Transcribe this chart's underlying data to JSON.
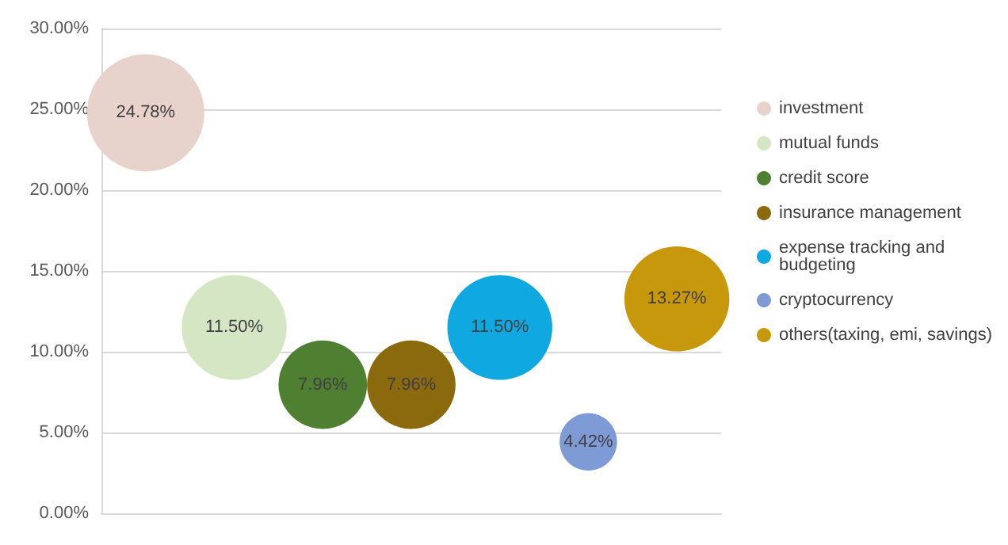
{
  "chart_data": {
    "type": "bubble",
    "categories": [
      null,
      null,
      null,
      null,
      null,
      null,
      null
    ],
    "relative": false,
    "series": [
      {
        "name": "investment",
        "color": "#e8d3cc",
        "values": [
          24.78,
          null,
          null,
          null,
          null,
          null,
          null
        ],
        "sizes": [
          1,
          null,
          null,
          null,
          null,
          null,
          null
        ],
        "value_labels": [
          "24.78%",
          null,
          null,
          null,
          null,
          null,
          null
        ]
      },
      {
        "name": "mutual funds",
        "color": "#d5e6c4",
        "values": [
          null,
          11.5,
          null,
          null,
          null,
          null,
          null
        ],
        "sizes": [
          null,
          0.8,
          null,
          null,
          null,
          null,
          null
        ],
        "value_labels": [
          null,
          "11.50%",
          null,
          null,
          null,
          null,
          null
        ]
      },
      {
        "name": "credit score",
        "color": "#4f7f30",
        "values": [
          null,
          null,
          7.96,
          null,
          null,
          null,
          null
        ],
        "sizes": [
          null,
          null,
          0.57,
          null,
          null,
          null,
          null
        ],
        "value_labels": [
          null,
          null,
          "7.96%",
          null,
          null,
          null,
          null
        ]
      },
      {
        "name": "insurance management",
        "color": "#8a6a0c",
        "values": [
          null,
          null,
          null,
          7.96,
          null,
          null,
          null
        ],
        "sizes": [
          null,
          null,
          null,
          0.57,
          null,
          null,
          null
        ],
        "value_labels": [
          null,
          null,
          null,
          "7.96%",
          null,
          null,
          null
        ]
      },
      {
        "name": "expense tracking and budgeting",
        "color": "#0fa8e0",
        "values": [
          null,
          null,
          null,
          null,
          11.5,
          null,
          null
        ],
        "sizes": [
          null,
          null,
          null,
          null,
          0.8,
          null,
          null
        ],
        "value_labels": [
          null,
          null,
          null,
          null,
          "11.50%",
          null,
          null
        ]
      },
      {
        "name": "cryptocurrency",
        "color": "#7f9bd6",
        "values": [
          null,
          null,
          null,
          null,
          null,
          4.42,
          null
        ],
        "sizes": [
          null,
          null,
          null,
          null,
          null,
          0.24,
          null
        ],
        "value_labels": [
          null,
          null,
          null,
          null,
          null,
          "4.42%",
          null
        ]
      },
      {
        "name": "others(taxing, emi, savings)",
        "color": "#c8980c",
        "values": [
          null,
          null,
          null,
          null,
          null,
          null,
          13.27
        ],
        "sizes": [
          null,
          null,
          null,
          null,
          null,
          null,
          0.8
        ],
        "value_labels": [
          null,
          null,
          null,
          null,
          null,
          null,
          "13.27%"
        ]
      }
    ],
    "ylim": [
      0,
      30
    ],
    "yticks": [
      {
        "value": 0,
        "label": "0.00%"
      },
      {
        "value": 5,
        "label": "5.00%"
      },
      {
        "value": 10,
        "label": "10.00%"
      },
      {
        "value": 15,
        "label": "15.00%"
      },
      {
        "value": 20,
        "label": "20.00%"
      },
      {
        "value": 25,
        "label": "25.00%"
      },
      {
        "value": 30,
        "label": "30.00%"
      }
    ],
    "grid": "y",
    "legend": "right"
  }
}
